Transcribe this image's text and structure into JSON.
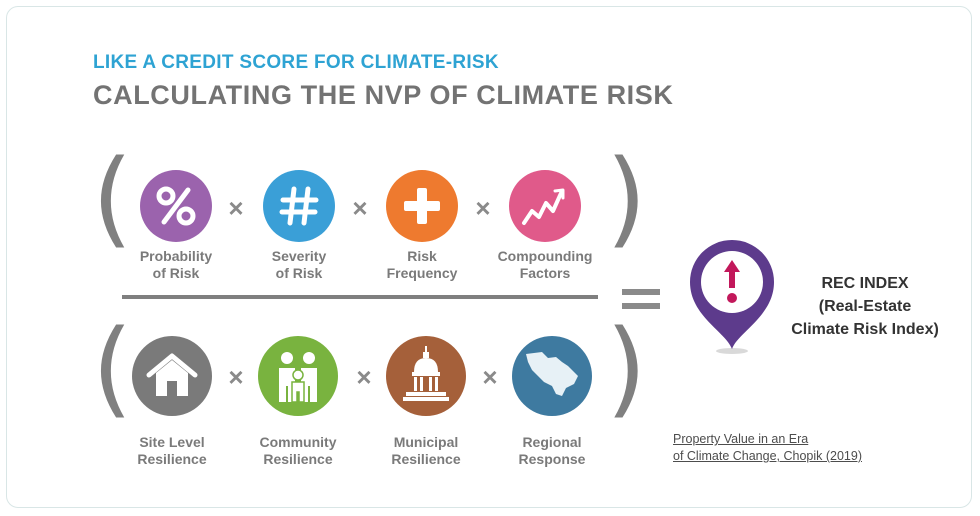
{
  "header": {
    "subtitle": "LIKE A CREDIT SCORE FOR CLIMATE-RISK",
    "title": "CALCULATING THE NVP OF CLIMATE RISK"
  },
  "operators": {
    "times": "×",
    "open_paren": "(",
    "close_paren": ")"
  },
  "numerator": [
    {
      "icon": "percent-icon",
      "color": "#9b63ad",
      "line1": "Probability",
      "line2": "of Risk"
    },
    {
      "icon": "hash-icon",
      "color": "#3a9fd7",
      "line1": "Severity",
      "line2": "of Risk"
    },
    {
      "icon": "plus-icon",
      "color": "#ee7a2f",
      "line1": "Risk",
      "line2": "Frequency"
    },
    {
      "icon": "zigzag-chart-icon",
      "color": "#e05a8a",
      "line1": "Compounding",
      "line2": "Factors"
    }
  ],
  "denominator": [
    {
      "icon": "house-icon",
      "color": "#7a7a7a",
      "line1": "Site Level",
      "line2": "Resilience"
    },
    {
      "icon": "family-icon",
      "color": "#79b33f",
      "line1": "Community",
      "line2": "Resilience"
    },
    {
      "icon": "city-hall-icon",
      "color": "#a5603a",
      "line1": "Municipal",
      "line2": "Resilience"
    },
    {
      "icon": "region-map-icon",
      "color": "#3e7aa0",
      "line1": "Regional",
      "line2": "Response"
    }
  ],
  "result": {
    "icon": "map-pin-alert-icon",
    "pin_color": "#5d3b8c",
    "accent_color": "#c2185b",
    "line1": "REC INDEX",
    "line2": "(Real-Estate",
    "line3": "Climate Risk Index)"
  },
  "citation": {
    "line1": "Property Value  in an Era",
    "line2": "of Climate Change, Chopik (2019)"
  }
}
